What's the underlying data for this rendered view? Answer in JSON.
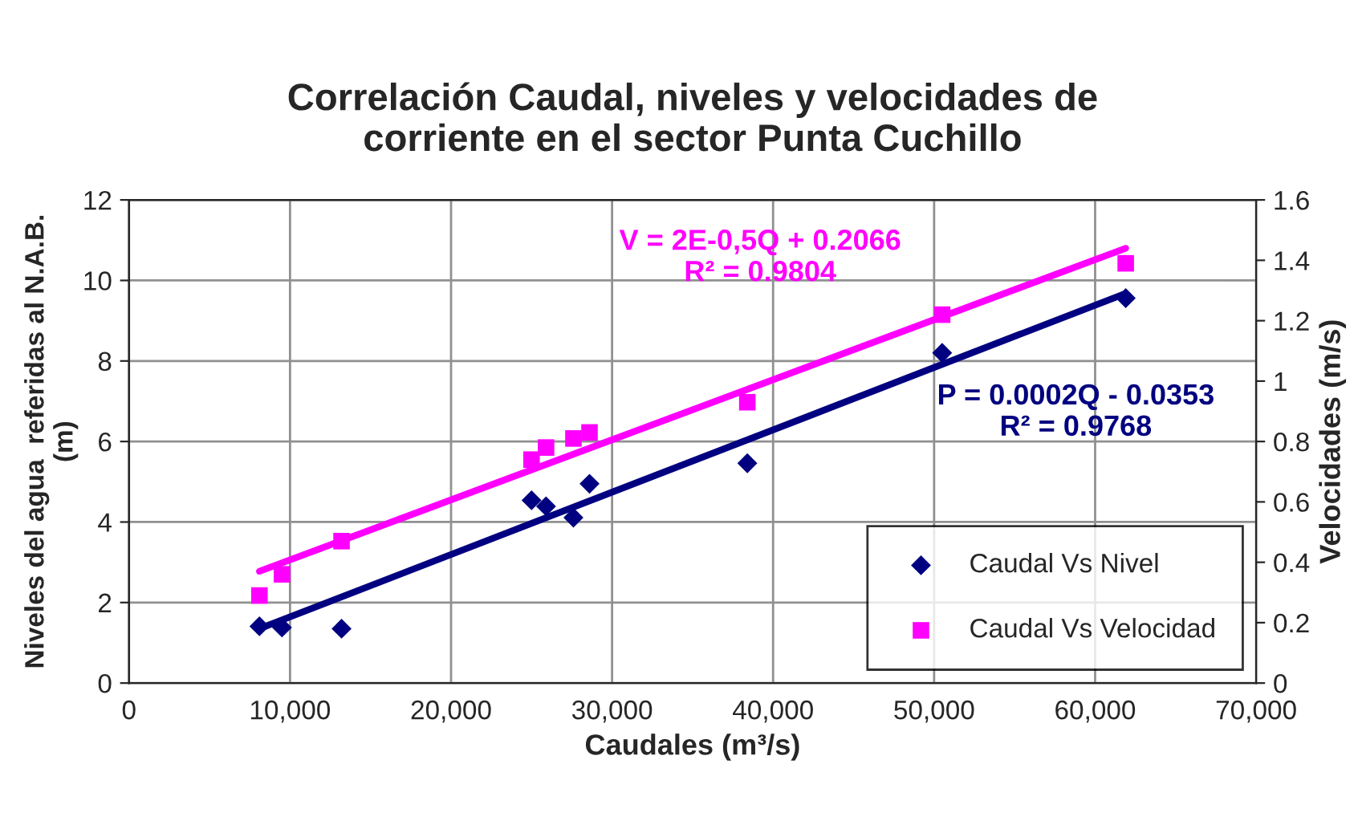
{
  "chart_data": {
    "type": "scatter",
    "title": "Correlación Caudal, niveles y velocidades de\ncorriente en el sector Punta Cuchillo",
    "xlabel": "Caudales (m³/s)",
    "ylabel": "Niveles del agua  referidas al N.A.B.\n(m)",
    "y2label": "Velocidades (m/s)",
    "xlim": [
      0,
      70000
    ],
    "xticks": [
      0,
      {
        "value": 10000,
        "label": "10,000"
      },
      {
        "value": 20000,
        "label": "20,000"
      },
      {
        "value": 30000,
        "label": "30,000"
      },
      {
        "value": 40000,
        "label": "40,000"
      },
      {
        "value": 50000,
        "label": "50,000"
      },
      {
        "value": 60000,
        "label": "60,000"
      },
      {
        "value": 70000,
        "label": "70,000"
      }
    ],
    "ylim": [
      0,
      12
    ],
    "yticks": [
      0,
      2,
      4,
      6,
      8,
      10,
      12
    ],
    "y2lim": [
      0,
      1.6
    ],
    "y2ticks": [
      0,
      0.2,
      0.4,
      0.6,
      0.8,
      1,
      1.2,
      1.4,
      1.6
    ],
    "grid": true,
    "legend": "bottom right",
    "series": [
      {
        "name": "Caudal Vs Nivel",
        "marker": "diamond",
        "color": "#000080",
        "x": [
          8100,
          9500,
          13200,
          25000,
          25900,
          27600,
          28600,
          38400,
          50500,
          61900
        ],
        "values": [
          1.41,
          1.38,
          1.35,
          4.54,
          4.39,
          4.11,
          4.95,
          5.46,
          8.2,
          9.56
        ]
      },
      {
        "name": "Caudal Vs Velocidad",
        "marker": "square",
        "axis": "y2",
        "color": "#ff00ff",
        "x": [
          8100,
          9500,
          13200,
          25000,
          25900,
          27600,
          28600,
          38400,
          50500,
          61900
        ],
        "values": [
          0.29,
          0.36,
          0.47,
          0.74,
          0.78,
          0.81,
          0.83,
          0.93,
          1.22,
          1.39
        ]
      },
      {
        "type": "line",
        "color": "#000080",
        "x": [
          8100,
          61900
        ],
        "values": [
          1.35,
          9.68
        ]
      },
      {
        "type": "line",
        "axis": "y2",
        "color": "#ff00ff",
        "x": [
          8100,
          61900
        ],
        "values": [
          0.37,
          1.44
        ]
      }
    ],
    "annotations": [
      "V = 2E-0,5Q + 0.2066\nR² = 0.9804",
      "P = 0.0002Q - 0.0353\nR² = 0.9768"
    ]
  }
}
